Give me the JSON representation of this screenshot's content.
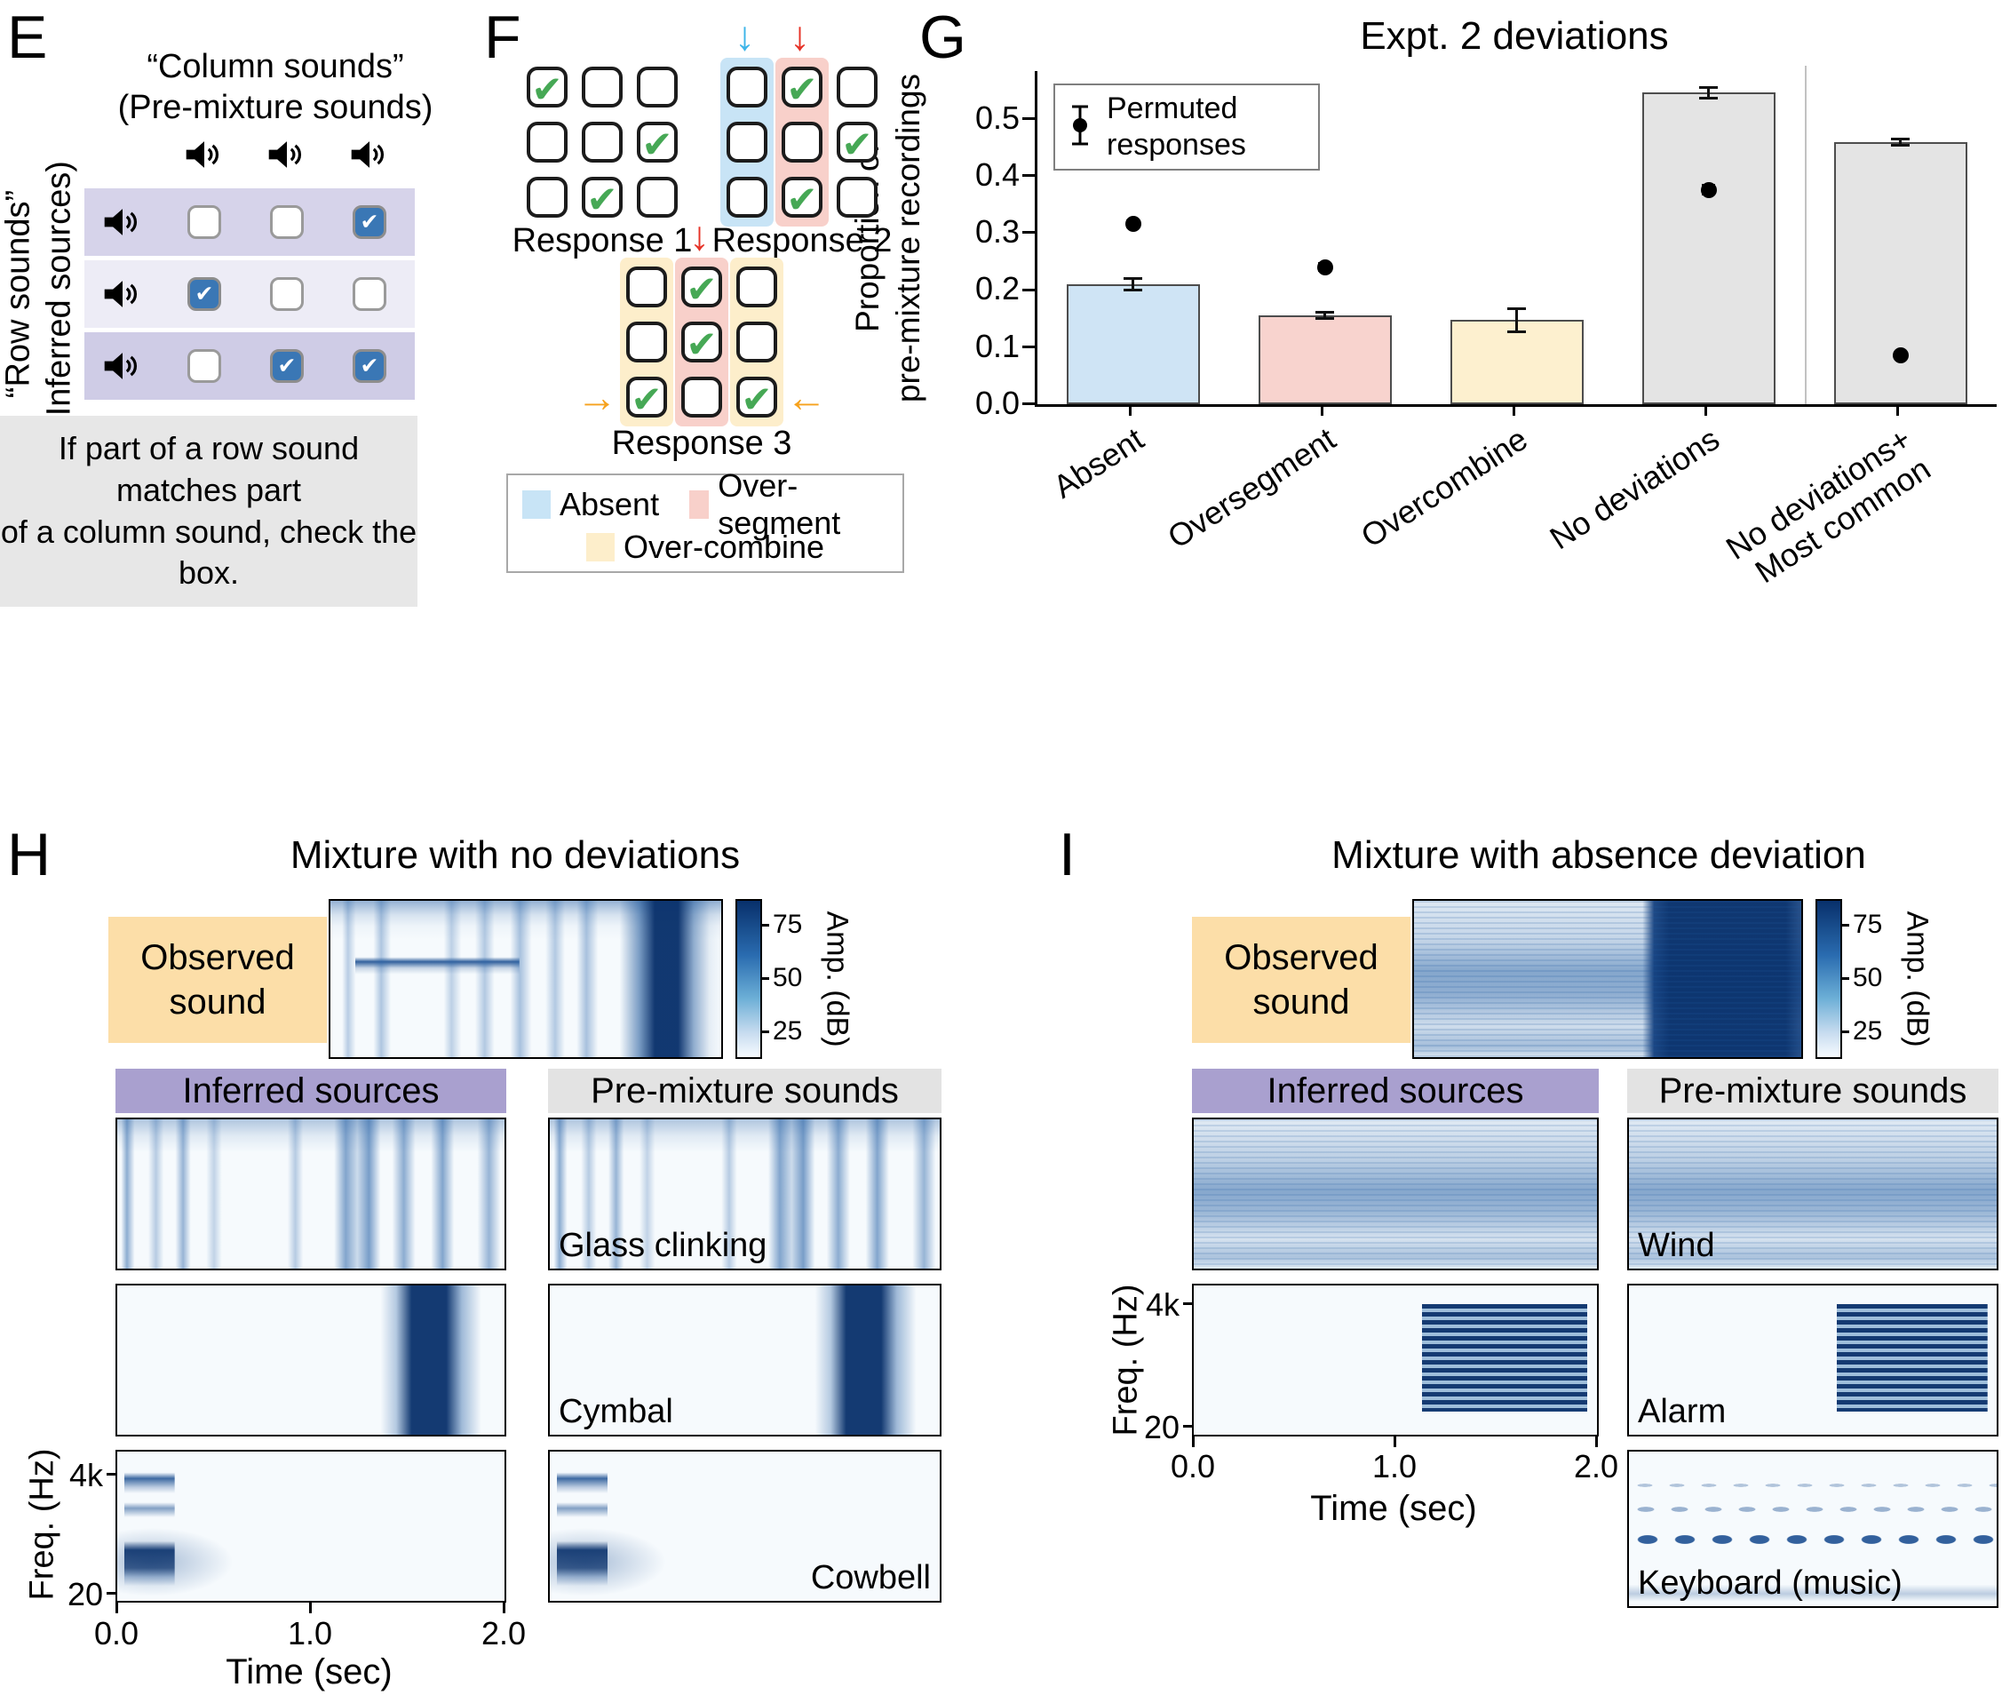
{
  "panelE": {
    "letter": "E",
    "column_title": [
      "“Column sounds”",
      "(Pre-mixture sounds)"
    ],
    "row_title": [
      "“Row sounds”",
      "(Inferred sources)"
    ],
    "caption": [
      "If part of a row sound matches part",
      "of a column sound, check the box."
    ],
    "matrix": {
      "rows": [
        [
          false,
          false,
          true
        ],
        [
          true,
          false,
          false
        ],
        [
          false,
          true,
          true
        ]
      ]
    }
  },
  "panelF": {
    "letter": "F",
    "responses": [
      {
        "label": "Response 1",
        "checks": [
          [
            true,
            false,
            false
          ],
          [
            false,
            false,
            true
          ],
          [
            false,
            true,
            false
          ]
        ]
      },
      {
        "label": "Response 2",
        "checks": [
          [
            false,
            true,
            false
          ],
          [
            false,
            false,
            true
          ],
          [
            false,
            true,
            false
          ]
        ]
      },
      {
        "label": "Response 3",
        "checks": [
          [
            false,
            true,
            false
          ],
          [
            false,
            true,
            false
          ],
          [
            true,
            false,
            true
          ]
        ]
      }
    ],
    "legend": [
      {
        "label": "Absent",
        "color": "#c8e4f6"
      },
      {
        "label": "Over-segment",
        "color": "#f8d0ca"
      },
      {
        "label": "Over-combine",
        "color": "#fdeecb"
      }
    ]
  },
  "panelG": {
    "letter": "G",
    "title": "Expt. 2 deviations",
    "legend_lines": [
      "Permuted",
      "responses"
    ],
    "ylabel_lines": [
      "Proportion of",
      "pre-mixture recordings"
    ],
    "ytick_labels": [
      "0.0",
      "0.1",
      "0.2",
      "0.3",
      "0.4",
      "0.5"
    ],
    "xticks": [
      {
        "line1": "Absent",
        "line2": ""
      },
      {
        "line1": "Oversegment",
        "line2": ""
      },
      {
        "line1": "Overcombine",
        "line2": ""
      },
      {
        "line1": "No deviations",
        "line2": ""
      },
      {
        "line1": "No deviations+",
        "line2": "Most common"
      }
    ]
  },
  "chart_data": {
    "type": "bar",
    "title": "Expt. 2 deviations",
    "ylabel": "Proportion of pre-mixture recordings",
    "ylim": [
      0,
      0.575
    ],
    "yticks": [
      0.0,
      0.1,
      0.2,
      0.3,
      0.4,
      0.5
    ],
    "grid": false,
    "legend_label": "Permuted responses",
    "legend_position": "upper left",
    "categories": [
      "Absent",
      "Oversegment",
      "Overcombine",
      "No deviations",
      "No deviations+ Most common"
    ],
    "bars": [
      {
        "category": "Absent",
        "value": 0.21,
        "error": 0.012,
        "color": "#cfe4f5"
      },
      {
        "category": "Oversegment",
        "value": 0.155,
        "error": 0.008,
        "color": "#f8d3ce"
      },
      {
        "category": "Overcombine",
        "value": 0.147,
        "error": 0.022,
        "color": "#fdf0cf"
      },
      {
        "category": "No deviations",
        "value": 0.545,
        "error": 0.012,
        "color": "#e4e4e4"
      },
      {
        "category": "No deviations+ Most common",
        "value": 0.458,
        "error": 0.008,
        "color": "#e4e4e4"
      }
    ],
    "permuted_responses": [
      {
        "category": "Absent",
        "value": 0.315,
        "error": 0.008
      },
      {
        "category": "Oversegment",
        "value": 0.24,
        "error": 0.008
      },
      {
        "category": "Overcombine",
        "value": null,
        "error": null
      },
      {
        "category": "No deviations",
        "value": 0.375,
        "error": 0.01
      },
      {
        "category": "No deviations+ Most common",
        "value": 0.085,
        "error": 0.006
      }
    ]
  },
  "panelH": {
    "letter": "H",
    "title": "Mixture with no deviations",
    "observed_label": [
      "Observed",
      "sound"
    ],
    "colorbar": {
      "ticks": [
        "75",
        "50",
        "25"
      ],
      "label": "Amp. (dB)"
    },
    "inferred_header": "Inferred sources",
    "premixture_header": "Pre-mixture sounds",
    "sounds": [
      "Glass clinking",
      "Cymbal",
      "Cowbell"
    ],
    "freq_axis": {
      "label": "Freq. (Hz)",
      "ticks": [
        "4k",
        "20"
      ]
    },
    "time_axis": {
      "label": "Time (sec)",
      "ticks": [
        "0.0",
        "1.0",
        "2.0"
      ]
    }
  },
  "panelI": {
    "letter": "I",
    "title": "Mixture with absence deviation",
    "observed_label": [
      "Observed",
      "sound"
    ],
    "colorbar": {
      "ticks": [
        "75",
        "50",
        "25"
      ],
      "label": "Amp. (dB)"
    },
    "inferred_header": "Inferred sources",
    "premixture_header": "Pre-mixture sounds",
    "sounds": [
      "Wind",
      "Alarm",
      "Keyboard (music)"
    ],
    "freq_axis": {
      "label": "Freq. (Hz)",
      "ticks": [
        "4k",
        "20"
      ]
    },
    "time_axis": {
      "label": "Time (sec)",
      "ticks": [
        "0.0",
        "1.0",
        "2.0"
      ]
    }
  }
}
